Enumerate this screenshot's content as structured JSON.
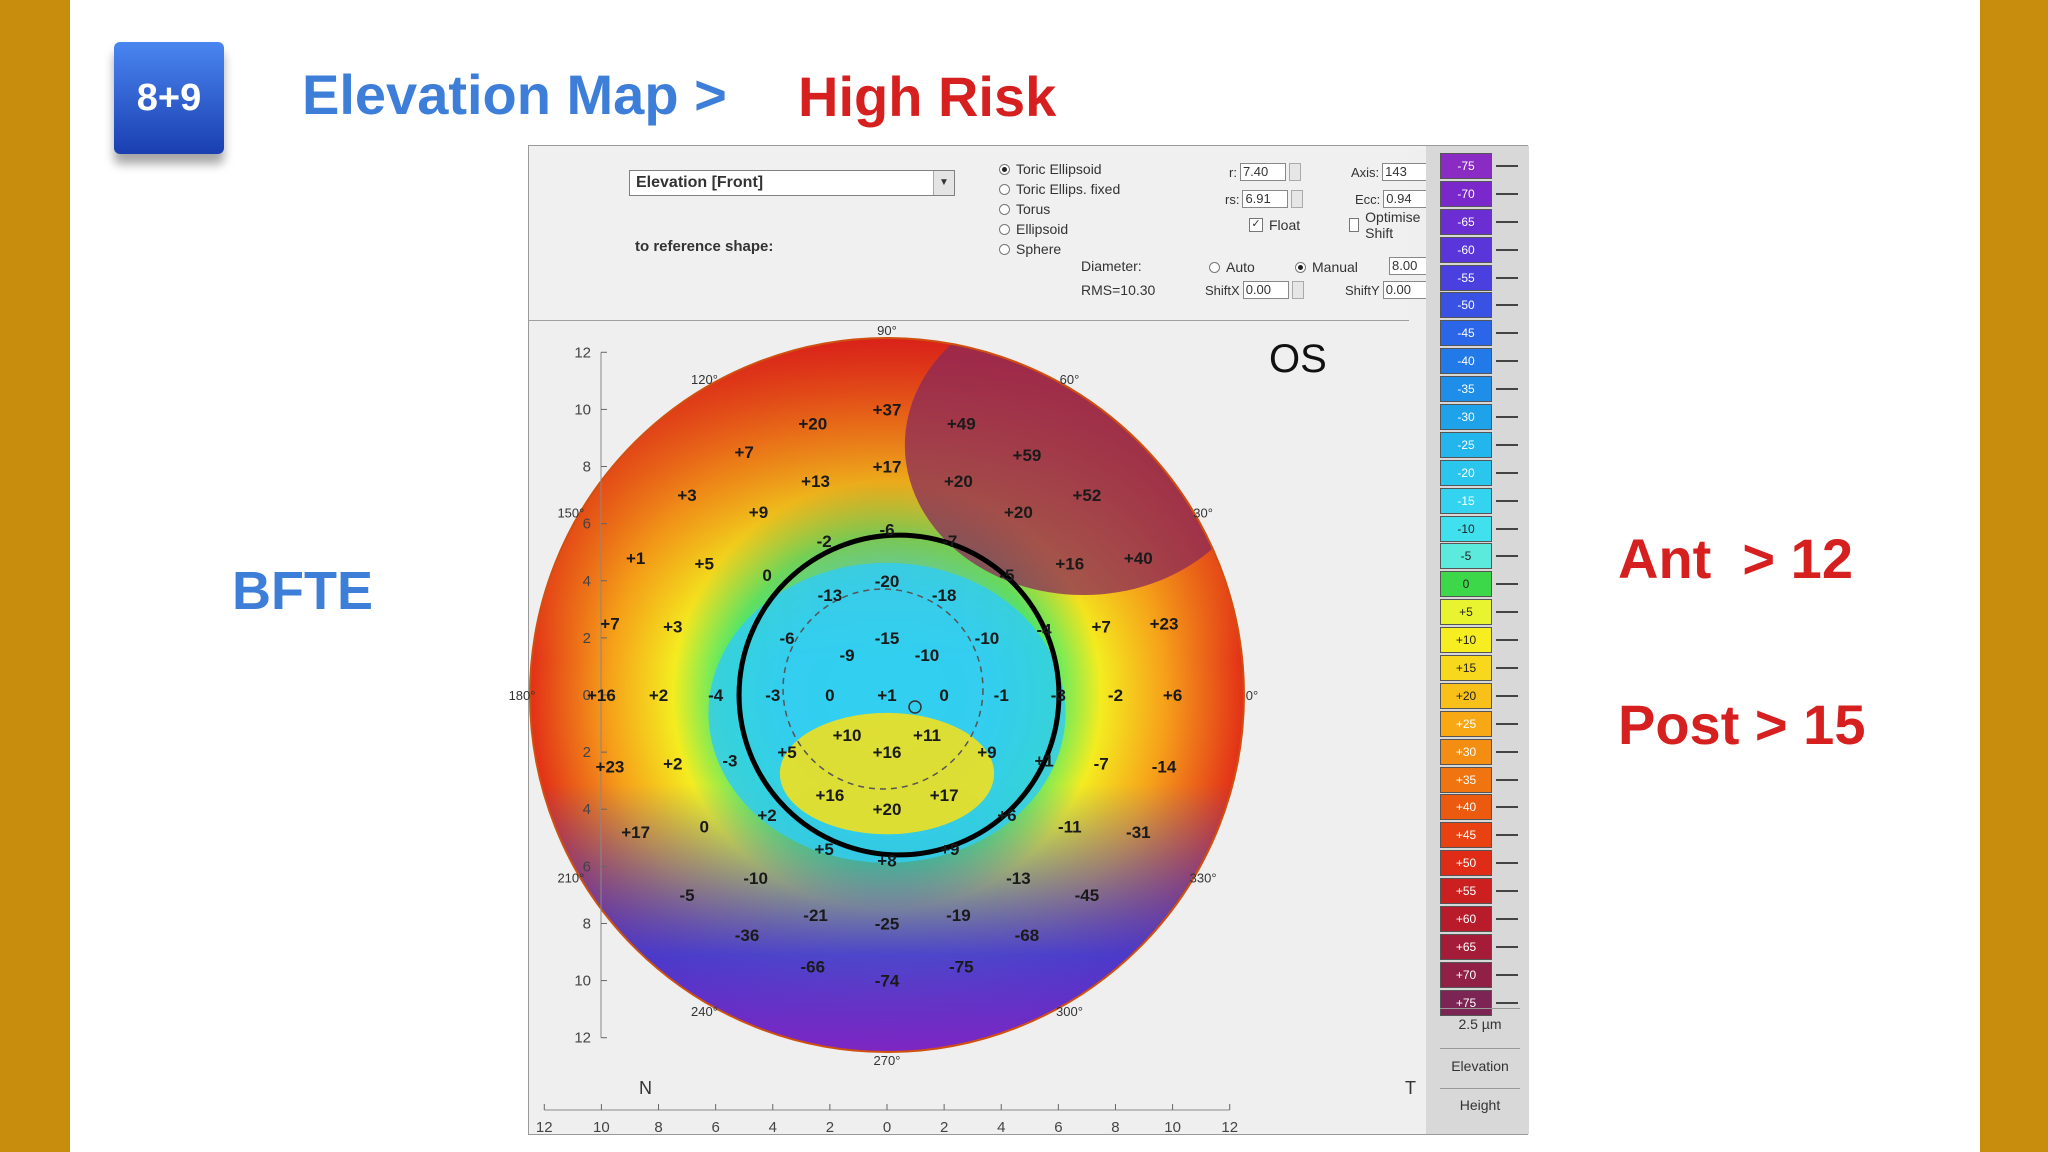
{
  "badge": "8+9",
  "title": {
    "main": "Elevation Map >",
    "risk": "High Risk"
  },
  "left_label": "BFTE",
  "criteria": {
    "ant": "Ant  > 12",
    "post": "Post > 15"
  },
  "controls": {
    "dropdown_value": "Elevation [Front]",
    "reference_label": "to reference shape:",
    "shapes": [
      {
        "label": "Toric Ellipsoid",
        "selected": true
      },
      {
        "label": "Toric Ellips. fixed",
        "selected": false
      },
      {
        "label": "Torus",
        "selected": false
      },
      {
        "label": "Ellipsoid",
        "selected": false
      },
      {
        "label": "Sphere",
        "selected": false
      }
    ],
    "r_label": "r:",
    "r_value": "7.40",
    "rs_label": "rs:",
    "rs_value": "6.91",
    "axis_label": "Axis:",
    "axis_value": "143",
    "ecc_label": "Ecc:",
    "ecc_value": "0.94",
    "float_label": "Float",
    "float_checked": true,
    "optimise_label": "Optimise Shift",
    "optimise_checked": false,
    "diameter_label": "Diameter:",
    "auto_label": "Auto",
    "manual_label": "Manual",
    "diameter_value": "8.00",
    "rms": "RMS=10.30",
    "shiftx_label": "ShiftX",
    "shiftx_value": "0.00",
    "shifty_label": "ShiftY",
    "shifty_value": "0.00"
  },
  "map": {
    "eye": "OS",
    "nasal": "N",
    "temporal": "T",
    "angle_labels": [
      "90°",
      "60°",
      "30°",
      "0°",
      "330°",
      "300°",
      "270°",
      "240°",
      "210°",
      "180°",
      "150°",
      "120°"
    ],
    "axis_ticks": [
      "12",
      "10",
      "8",
      "6",
      "4",
      "2",
      "0",
      "2",
      "4",
      "6",
      "8",
      "10",
      "12"
    ],
    "values": [
      {
        "t": "+20",
        "x": -2.6,
        "y": 9.5
      },
      {
        "t": "+37",
        "x": 0,
        "y": 10
      },
      {
        "t": "+49",
        "x": 2.6,
        "y": 9.5
      },
      {
        "t": "+7",
        "x": -5,
        "y": 8.5
      },
      {
        "t": "+59",
        "x": 4.9,
        "y": 8.4
      },
      {
        "t": "+13",
        "x": -2.5,
        "y": 7.5
      },
      {
        "t": "+17",
        "x": 0,
        "y": 8
      },
      {
        "t": "+20",
        "x": 2.5,
        "y": 7.5
      },
      {
        "t": "+3",
        "x": -7,
        "y": 7
      },
      {
        "t": "+9",
        "x": -4.5,
        "y": 6.4
      },
      {
        "t": "+20",
        "x": 4.6,
        "y": 6.4
      },
      {
        "t": "+52",
        "x": 7,
        "y": 7
      },
      {
        "t": "-6",
        "x": 0,
        "y": 5.8
      },
      {
        "t": "-2",
        "x": -2.2,
        "y": 5.4
      },
      {
        "t": "-7",
        "x": 2.2,
        "y": 5.4
      },
      {
        "t": "+1",
        "x": -8.8,
        "y": 4.8
      },
      {
        "t": "+5",
        "x": -6.4,
        "y": 4.6
      },
      {
        "t": "+16",
        "x": 6.4,
        "y": 4.6
      },
      {
        "t": "+40",
        "x": 8.8,
        "y": 4.8
      },
      {
        "t": "0",
        "x": -4.2,
        "y": 4.2
      },
      {
        "t": "-5",
        "x": 4.2,
        "y": 4.2
      },
      {
        "t": "-20",
        "x": 0,
        "y": 4
      },
      {
        "t": "-13",
        "x": -2,
        "y": 3.5
      },
      {
        "t": "-18",
        "x": 2,
        "y": 3.5
      },
      {
        "t": "+7",
        "x": -9.7,
        "y": 2.5
      },
      {
        "t": "+3",
        "x": -7.5,
        "y": 2.4
      },
      {
        "t": "+7",
        "x": 7.5,
        "y": 2.4
      },
      {
        "t": "+23",
        "x": 9.7,
        "y": 2.5
      },
      {
        "t": "-6",
        "x": -3.5,
        "y": 2
      },
      {
        "t": "-4",
        "x": 5.5,
        "y": 2.3
      },
      {
        "t": "-15",
        "x": 0,
        "y": 2
      },
      {
        "t": "-9",
        "x": -1.4,
        "y": 1.4
      },
      {
        "t": "-10",
        "x": 1.4,
        "y": 1.4
      },
      {
        "t": "-10",
        "x": 3.5,
        "y": 2
      },
      {
        "t": "+16",
        "x": -10,
        "y": 0
      },
      {
        "t": "+2",
        "x": -8,
        "y": 0
      },
      {
        "t": "-4",
        "x": -6,
        "y": 0
      },
      {
        "t": "-3",
        "x": -4,
        "y": 0
      },
      {
        "t": "0",
        "x": -2,
        "y": 0
      },
      {
        "t": "+1",
        "x": 0,
        "y": 0
      },
      {
        "t": "0",
        "x": 2,
        "y": 0
      },
      {
        "t": "-1",
        "x": 4,
        "y": 0
      },
      {
        "t": "-3",
        "x": 6,
        "y": 0
      },
      {
        "t": "-2",
        "x": 8,
        "y": 0
      },
      {
        "t": "+6",
        "x": 10,
        "y": 0
      },
      {
        "t": "+10",
        "x": -1.4,
        "y": -1.4
      },
      {
        "t": "+11",
        "x": 1.4,
        "y": -1.4
      },
      {
        "t": "+23",
        "x": -9.7,
        "y": -2.5
      },
      {
        "t": "+2",
        "x": -7.5,
        "y": -2.4
      },
      {
        "t": "-3",
        "x": -5.5,
        "y": -2.3
      },
      {
        "t": "+5",
        "x": -3.5,
        "y": -2
      },
      {
        "t": "+16",
        "x": 0,
        "y": -2
      },
      {
        "t": "+9",
        "x": 3.5,
        "y": -2
      },
      {
        "t": "+1",
        "x": 5.5,
        "y": -2.3
      },
      {
        "t": "-7",
        "x": 7.5,
        "y": -2.4
      },
      {
        "t": "-14",
        "x": 9.7,
        "y": -2.5
      },
      {
        "t": "+16",
        "x": -2,
        "y": -3.5
      },
      {
        "t": "+17",
        "x": 2,
        "y": -3.5
      },
      {
        "t": "+20",
        "x": 0,
        "y": -4
      },
      {
        "t": "+2",
        "x": -4.2,
        "y": -4.2
      },
      {
        "t": "+6",
        "x": 4.2,
        "y": -4.2
      },
      {
        "t": "+17",
        "x": -8.8,
        "y": -4.8
      },
      {
        "t": "0",
        "x": -6.4,
        "y": -4.6
      },
      {
        "t": "-11",
        "x": 6.4,
        "y": -4.6
      },
      {
        "t": "-31",
        "x": 8.8,
        "y": -4.8
      },
      {
        "t": "+5",
        "x": -2.2,
        "y": -5.4
      },
      {
        "t": "+8",
        "x": 0,
        "y": -5.8
      },
      {
        "t": "+9",
        "x": 2.2,
        "y": -5.4
      },
      {
        "t": "-10",
        "x": -4.6,
        "y": -6.4
      },
      {
        "t": "-13",
        "x": 4.6,
        "y": -6.4
      },
      {
        "t": "-5",
        "x": -7,
        "y": -7
      },
      {
        "t": "-45",
        "x": 7,
        "y": -7
      },
      {
        "t": "-21",
        "x": -2.5,
        "y": -7.7
      },
      {
        "t": "-25",
        "x": 0,
        "y": -8
      },
      {
        "t": "-19",
        "x": 2.5,
        "y": -7.7
      },
      {
        "t": "-36",
        "x": -4.9,
        "y": -8.4
      },
      {
        "t": "-68",
        "x": 4.9,
        "y": -8.4
      },
      {
        "t": "-66",
        "x": -2.6,
        "y": -9.5
      },
      {
        "t": "-74",
        "x": 0,
        "y": -10
      },
      {
        "t": "-75",
        "x": 2.6,
        "y": -9.5
      }
    ]
  },
  "scale": {
    "cells": [
      {
        "label": "-75",
        "color": "#8a2cc4"
      },
      {
        "label": "-70",
        "color": "#7a28cc"
      },
      {
        "label": "-65",
        "color": "#6a2ed2"
      },
      {
        "label": "-60",
        "color": "#5a36da"
      },
      {
        "label": "-55",
        "color": "#4a40e0"
      },
      {
        "label": "-50",
        "color": "#3a52e4"
      },
      {
        "label": "-45",
        "color": "#2c66e8"
      },
      {
        "label": "-40",
        "color": "#227ae8"
      },
      {
        "label": "-35",
        "color": "#1e8ee8"
      },
      {
        "label": "-30",
        "color": "#1ea2ea"
      },
      {
        "label": "-25",
        "color": "#22b6ec"
      },
      {
        "label": "-20",
        "color": "#2ac6ee"
      },
      {
        "label": "-15",
        "color": "#34d4f0"
      },
      {
        "label": "-10",
        "color": "#40e0ee"
      },
      {
        "label": "-5",
        "color": "#5ceadc"
      },
      {
        "label": "0",
        "color": "#3cd84a"
      },
      {
        "label": "+5",
        "color": "#e8f430"
      },
      {
        "label": "+10",
        "color": "#f6ee20"
      },
      {
        "label": "+15",
        "color": "#f8d81c"
      },
      {
        "label": "+20",
        "color": "#f8c018"
      },
      {
        "label": "+25",
        "color": "#f8a814"
      },
      {
        "label": "+30",
        "color": "#f48e12"
      },
      {
        "label": "+35",
        "color": "#f07410"
      },
      {
        "label": "+40",
        "color": "#ec5a10"
      },
      {
        "label": "+45",
        "color": "#e84212"
      },
      {
        "label": "+50",
        "color": "#e02c16"
      },
      {
        "label": "+55",
        "color": "#cc2020"
      },
      {
        "label": "+60",
        "color": "#b81c2a"
      },
      {
        "label": "+65",
        "color": "#a41c38"
      },
      {
        "label": "+70",
        "color": "#902046"
      },
      {
        "label": "+75",
        "color": "#7c2454"
      }
    ],
    "units": "2.5 µm",
    "mode1": "Elevation",
    "mode2": "Height"
  }
}
